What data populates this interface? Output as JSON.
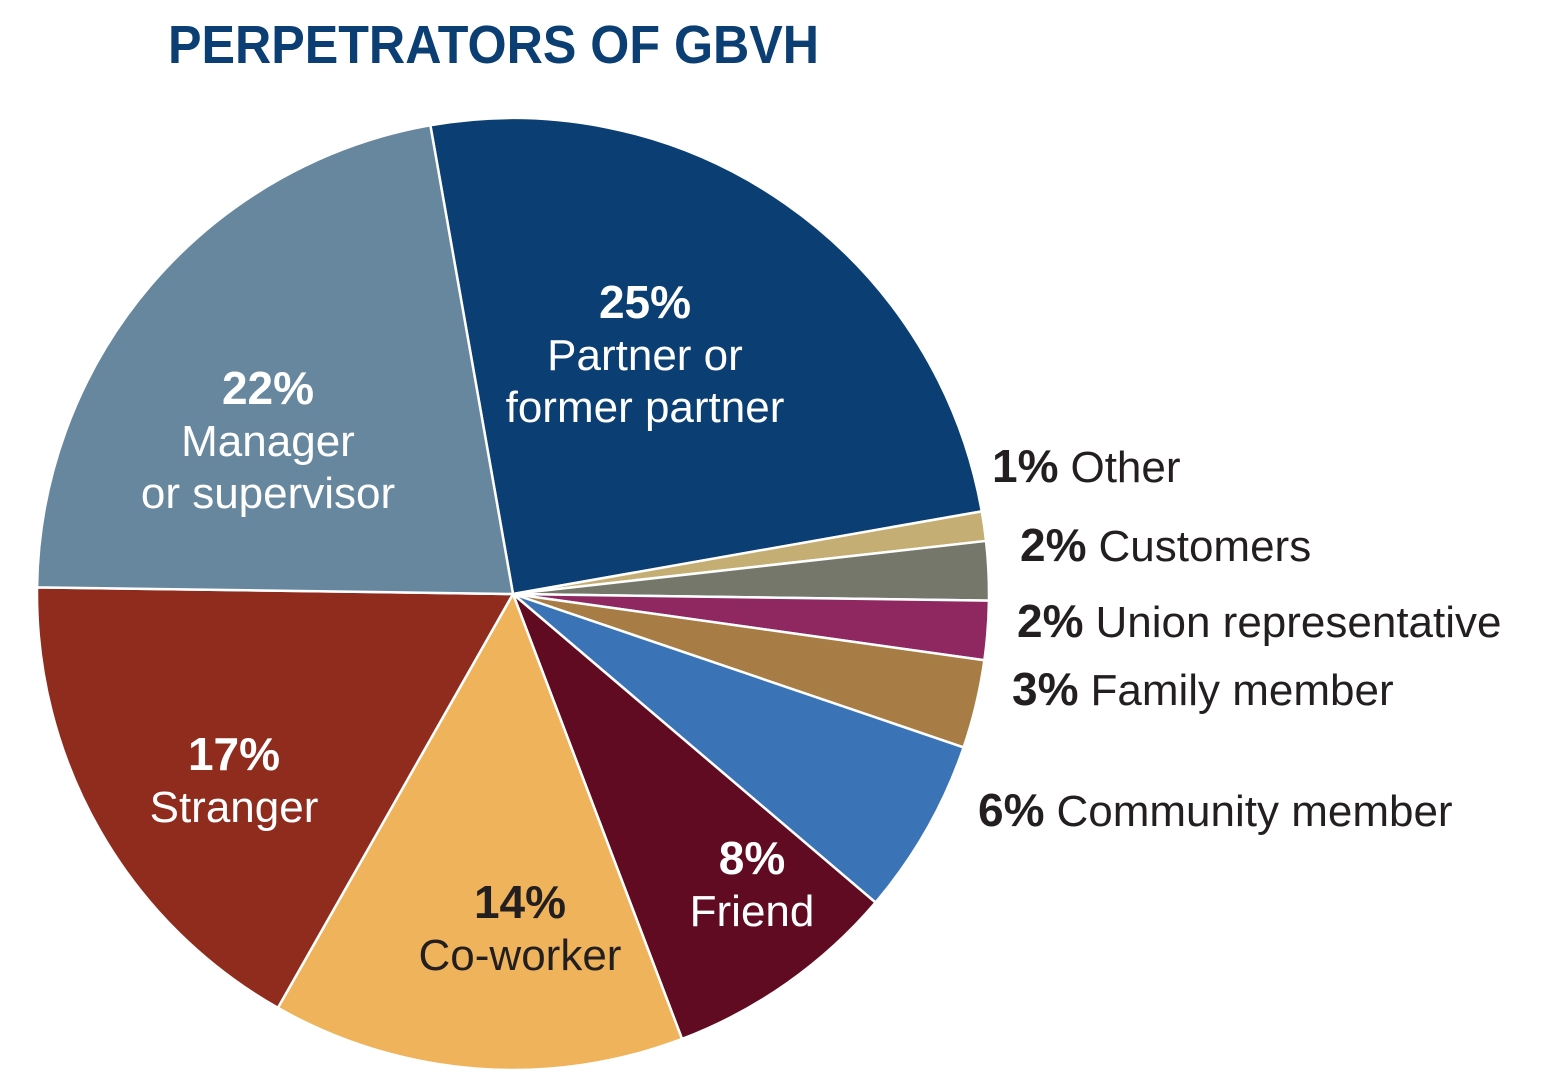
{
  "chart_data": {
    "type": "pie",
    "title": "PERPETRATORS OF GBVH",
    "slices": [
      {
        "pct_label": "25%",
        "name_lines": [
          "Partner or",
          "former partner"
        ],
        "value": 25,
        "color": "#0b3f73",
        "label_color": "#ffffff",
        "label_placement": "inside"
      },
      {
        "pct_label": "1%",
        "name_lines": [
          "Other"
        ],
        "value": 1,
        "color": "#c4ae73",
        "label_color": "#231f20",
        "label_placement": "outside"
      },
      {
        "pct_label": "2%",
        "name_lines": [
          "Customers"
        ],
        "value": 2,
        "color": "#76776b",
        "label_color": "#231f20",
        "label_placement": "outside"
      },
      {
        "pct_label": "2%",
        "name_lines": [
          "Union representative"
        ],
        "value": 2,
        "color": "#8f2860",
        "label_color": "#231f20",
        "label_placement": "outside"
      },
      {
        "pct_label": "3%",
        "name_lines": [
          "Family member"
        ],
        "value": 3,
        "color": "#a77c45",
        "label_color": "#231f20",
        "label_placement": "outside"
      },
      {
        "pct_label": "6%",
        "name_lines": [
          "Community member"
        ],
        "value": 6,
        "color": "#3a74b6",
        "label_color": "#231f20",
        "label_placement": "outside"
      },
      {
        "pct_label": "8%",
        "name_lines": [
          "Friend"
        ],
        "value": 8,
        "color": "#600b21",
        "label_color": "#ffffff",
        "label_placement": "inside"
      },
      {
        "pct_label": "14%",
        "name_lines": [
          "Co-worker"
        ],
        "value": 14,
        "color": "#efb35b",
        "label_color": "#231f20",
        "label_placement": "inside"
      },
      {
        "pct_label": "17%",
        "name_lines": [
          "Stranger"
        ],
        "value": 17,
        "color": "#902c1e",
        "label_color": "#ffffff",
        "label_placement": "inside"
      },
      {
        "pct_label": "22%",
        "name_lines": [
          "Manager",
          "or supervisor"
        ],
        "value": 22,
        "color": "#67879f",
        "label_color": "#ffffff",
        "label_placement": "inside"
      }
    ]
  }
}
